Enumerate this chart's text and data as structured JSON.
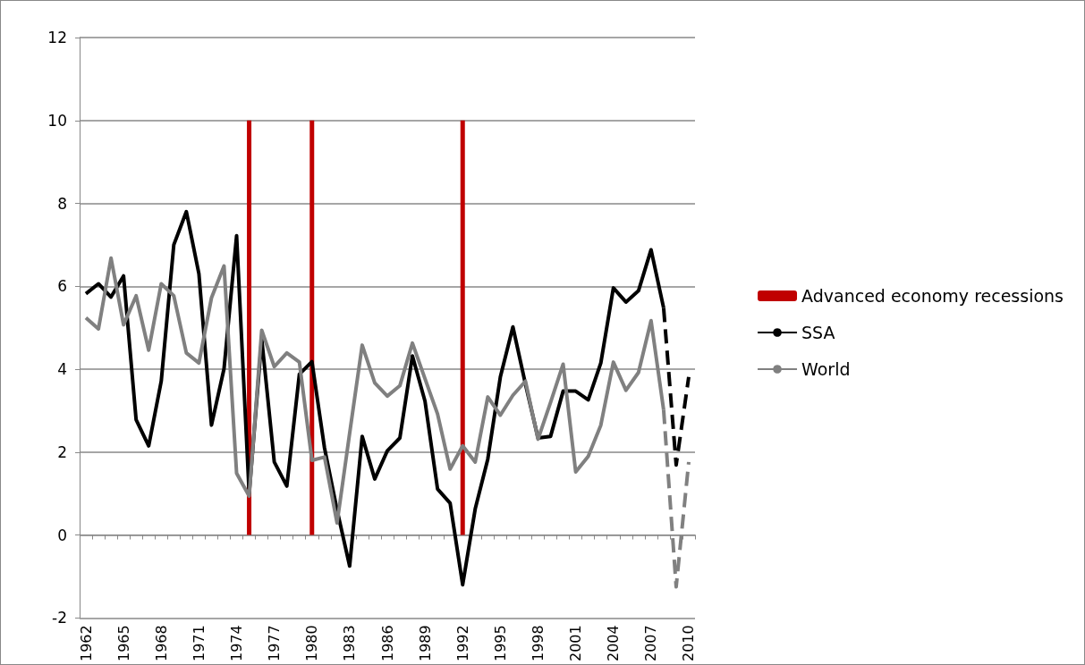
{
  "chart_data": {
    "type": "line",
    "categories": [
      "1962",
      null,
      null,
      "1965",
      null,
      null,
      "1968",
      null,
      null,
      "1971",
      null,
      null,
      "1974",
      null,
      null,
      "1977",
      null,
      null,
      "1980",
      null,
      null,
      "1983",
      null,
      null,
      "1986",
      null,
      null,
      "1989",
      null,
      null,
      "1992",
      null,
      null,
      "1995",
      null,
      null,
      "1998",
      null,
      null,
      "2001",
      null,
      null,
      "2004",
      null,
      null,
      "2007",
      null,
      null,
      "2010"
    ],
    "ylim": [
      -2,
      12
    ],
    "yticks": [
      -2,
      0,
      2,
      4,
      6,
      8,
      10,
      12
    ],
    "grid": "y",
    "legend": "right",
    "marker": "none",
    "series": [
      {
        "name": "Advanced economy recessions",
        "type": "bar",
        "color": "#c00000",
        "values": [
          null,
          null,
          null,
          null,
          null,
          null,
          null,
          null,
          null,
          null,
          null,
          null,
          null,
          10,
          null,
          null,
          null,
          null,
          10,
          null,
          null,
          null,
          null,
          null,
          null,
          null,
          null,
          null,
          null,
          null,
          10,
          null,
          null,
          null,
          null,
          null,
          null,
          null,
          null,
          null,
          null,
          null,
          null,
          null,
          null,
          null,
          null,
          null,
          null
        ]
      },
      {
        "name": "SSA",
        "color": "#000000",
        "line_style": "solid",
        "values": [
          5.82,
          6.06,
          5.74,
          6.25,
          2.78,
          2.15,
          3.71,
          7.0,
          7.8,
          6.3,
          2.65,
          4.01,
          7.22,
          1.0,
          4.73,
          1.76,
          1.18,
          3.88,
          4.18,
          2.1,
          0.6,
          -0.75,
          2.38,
          1.35,
          2.03,
          2.34,
          4.32,
          3.23,
          1.11,
          0.77,
          -1.2,
          0.63,
          1.83,
          3.81,
          5.02,
          3.64,
          2.34,
          2.38,
          3.47,
          3.47,
          3.26,
          4.15,
          5.96,
          5.62,
          5.89,
          6.88,
          5.48,
          null,
          null
        ]
      },
      {
        "name": "World",
        "color": "#808080",
        "line_style": "solid",
        "values": [
          5.24,
          4.97,
          6.68,
          5.07,
          5.77,
          4.46,
          6.06,
          5.77,
          4.39,
          4.15,
          5.72,
          6.49,
          1.49,
          0.94,
          4.94,
          4.06,
          4.39,
          4.17,
          1.8,
          1.88,
          0.29,
          2.45,
          4.58,
          3.67,
          3.35,
          3.6,
          4.63,
          3.77,
          2.92,
          1.59,
          2.15,
          1.76,
          3.33,
          2.89,
          3.37,
          3.71,
          2.31,
          3.2,
          4.12,
          1.52,
          1.9,
          2.65,
          4.17,
          3.49,
          3.92,
          5.17,
          3.02,
          null,
          null
        ]
      },
      {
        "color": "#000000",
        "line_style": "dashed",
        "values": [
          null,
          null,
          null,
          null,
          null,
          null,
          null,
          null,
          null,
          null,
          null,
          null,
          null,
          null,
          null,
          null,
          null,
          null,
          null,
          null,
          null,
          null,
          null,
          null,
          null,
          null,
          null,
          null,
          null,
          null,
          null,
          null,
          null,
          null,
          null,
          null,
          null,
          null,
          null,
          null,
          null,
          null,
          null,
          null,
          null,
          null,
          5.48,
          1.69,
          3.81
        ]
      },
      {
        "color": "#808080",
        "line_style": "dashed",
        "values": [
          null,
          null,
          null,
          null,
          null,
          null,
          null,
          null,
          null,
          null,
          null,
          null,
          null,
          null,
          null,
          null,
          null,
          null,
          null,
          null,
          null,
          null,
          null,
          null,
          null,
          null,
          null,
          null,
          null,
          null,
          null,
          null,
          null,
          null,
          null,
          null,
          null,
          null,
          null,
          null,
          null,
          null,
          null,
          null,
          null,
          null,
          3.02,
          -1.25,
          1.76
        ]
      }
    ]
  }
}
